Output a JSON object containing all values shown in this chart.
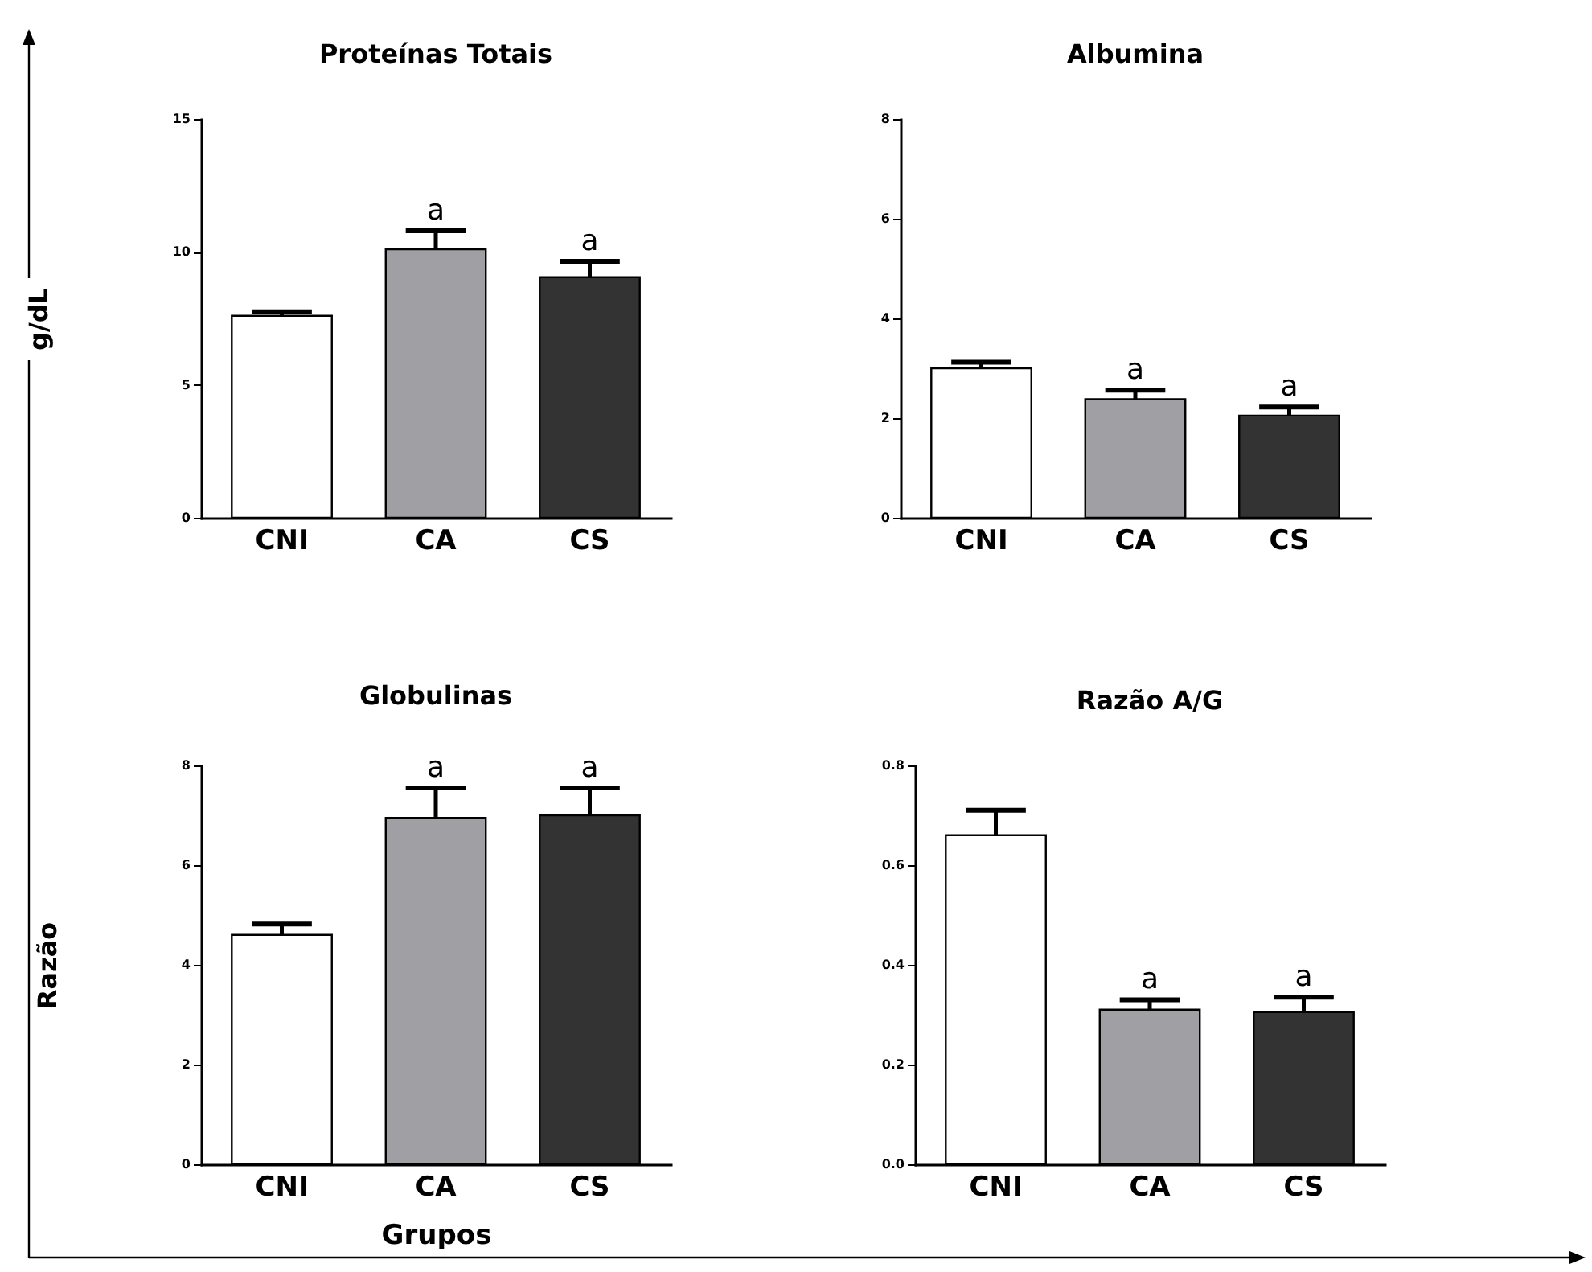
{
  "chart_data": [
    {
      "type": "bar",
      "title": "Proteínas Totais",
      "ylabel": "g/dL",
      "categories": [
        "CNI",
        "CA",
        "CS"
      ],
      "values": [
        7.6,
        10.1,
        9.05
      ],
      "errors": [
        0.15,
        0.7,
        0.6
      ],
      "colors": [
        "#ffffff",
        "#a0a0a4",
        "#333333"
      ],
      "ylim": [
        0,
        15
      ],
      "yticks": [
        0,
        5,
        10,
        15
      ],
      "annotations": [
        {
          "text": "a",
          "x": "CA",
          "y": 10.8
        },
        {
          "text": "a",
          "x": "CS",
          "y": 9.65
        }
      ]
    },
    {
      "type": "bar",
      "title": "Albumina",
      "categories": [
        "CNI",
        "CA",
        "CS"
      ],
      "values": [
        3.0,
        2.38,
        2.05
      ],
      "errors": [
        0.12,
        0.18,
        0.17
      ],
      "colors": [
        "#ffffff",
        "#a0a0a4",
        "#333333"
      ],
      "ylim": [
        0,
        8
      ],
      "yticks": [
        0,
        2,
        4,
        6,
        8
      ],
      "annotations": [
        {
          "text": "a",
          "x": "CA",
          "y": 2.56
        },
        {
          "text": "a",
          "x": "CS",
          "y": 2.22
        }
      ]
    },
    {
      "type": "bar",
      "title": "Globulinas",
      "ylabel": "Razão",
      "xlabel": "Grupos",
      "categories": [
        "CNI",
        "CA",
        "CS"
      ],
      "values": [
        4.6,
        6.95,
        7.0
      ],
      "errors": [
        0.22,
        0.6,
        0.55
      ],
      "colors": [
        "#ffffff",
        "#a0a0a4",
        "#333333"
      ],
      "ylim": [
        0,
        8
      ],
      "yticks": [
        0,
        2,
        4,
        6,
        8
      ],
      "annotations": [
        {
          "text": "a",
          "x": "CA",
          "y": 7.55
        },
        {
          "text": "a",
          "x": "CS",
          "y": 7.55
        }
      ]
    },
    {
      "type": "bar",
      "title": "Razão A/G",
      "categories": [
        "CNI",
        "CA",
        "CS"
      ],
      "values": [
        0.66,
        0.31,
        0.305
      ],
      "errors": [
        0.05,
        0.02,
        0.03
      ],
      "colors": [
        "#ffffff",
        "#a0a0a4",
        "#333333"
      ],
      "ylim": [
        0,
        0.8
      ],
      "yticks": [
        {
          "value": 0,
          "label": "0.0"
        },
        {
          "value": 0.2,
          "label": "0.2"
        },
        {
          "value": 0.4,
          "label": "0.4"
        },
        {
          "value": 0.6,
          "label": "0.6"
        },
        {
          "value": 0.8,
          "label": "0.8"
        }
      ],
      "annotations": [
        {
          "text": "a",
          "x": "CA",
          "y": 0.33
        },
        {
          "text": "a",
          "x": "CS",
          "y": 0.335
        }
      ]
    }
  ]
}
